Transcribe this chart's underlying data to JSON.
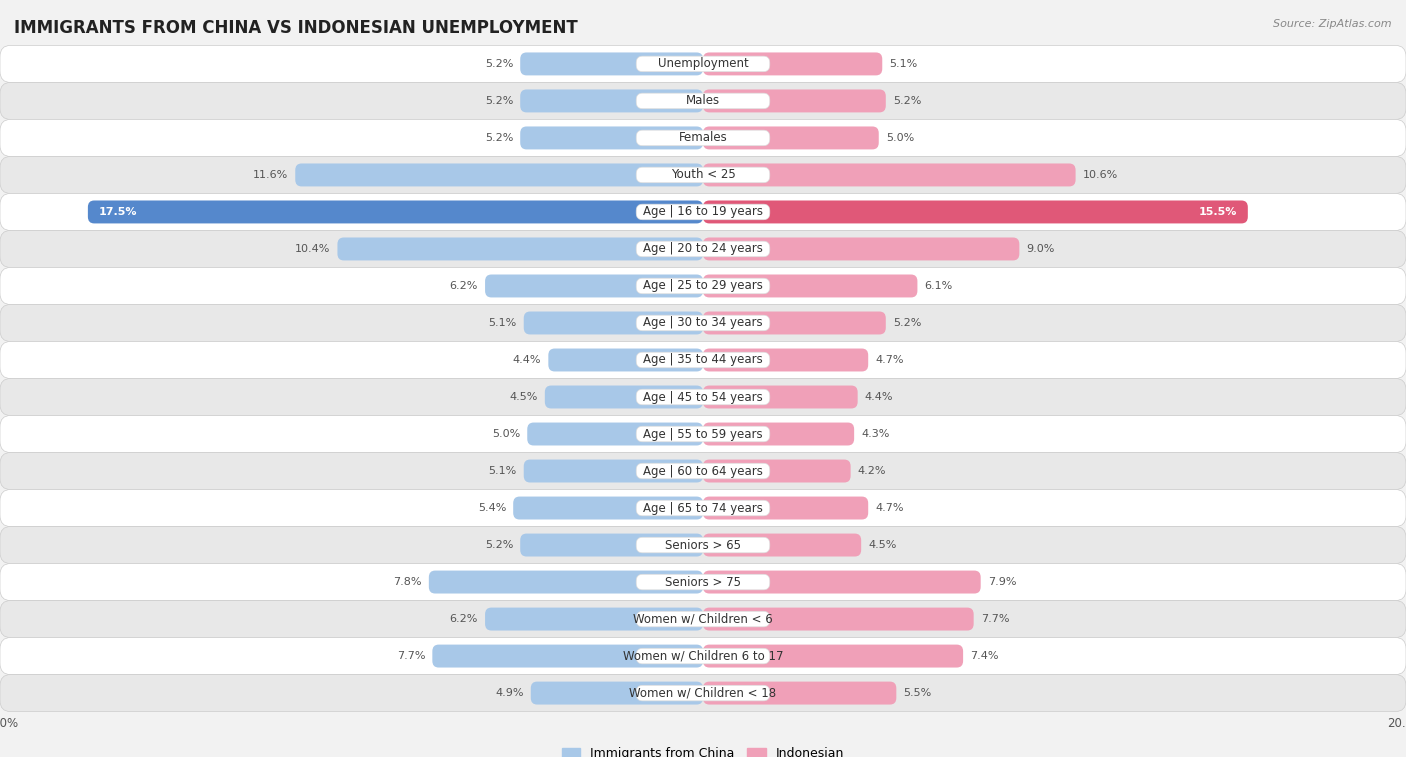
{
  "title": "IMMIGRANTS FROM CHINA VS INDONESIAN UNEMPLOYMENT",
  "source": "Source: ZipAtlas.com",
  "categories": [
    "Unemployment",
    "Males",
    "Females",
    "Youth < 25",
    "Age | 16 to 19 years",
    "Age | 20 to 24 years",
    "Age | 25 to 29 years",
    "Age | 30 to 34 years",
    "Age | 35 to 44 years",
    "Age | 45 to 54 years",
    "Age | 55 to 59 years",
    "Age | 60 to 64 years",
    "Age | 65 to 74 years",
    "Seniors > 65",
    "Seniors > 75",
    "Women w/ Children < 6",
    "Women w/ Children 6 to 17",
    "Women w/ Children < 18"
  ],
  "left_values": [
    5.2,
    5.2,
    5.2,
    11.6,
    17.5,
    10.4,
    6.2,
    5.1,
    4.4,
    4.5,
    5.0,
    5.1,
    5.4,
    5.2,
    7.8,
    6.2,
    7.7,
    4.9
  ],
  "right_values": [
    5.1,
    5.2,
    5.0,
    10.6,
    15.5,
    9.0,
    6.1,
    5.2,
    4.7,
    4.4,
    4.3,
    4.2,
    4.7,
    4.5,
    7.9,
    7.7,
    7.4,
    5.5
  ],
  "left_color": "#a8c8e8",
  "right_color": "#f0a0b8",
  "highlight_left_color": "#5588cc",
  "highlight_right_color": "#e05878",
  "highlight_rows": [
    4
  ],
  "background_color": "#f2f2f2",
  "row_white_color": "#ffffff",
  "row_gray_color": "#e8e8e8",
  "max_value": 20.0,
  "legend_left": "Immigrants from China",
  "legend_right": "Indonesian",
  "title_fontsize": 12,
  "label_fontsize": 8.5,
  "value_fontsize": 8,
  "bar_height": 0.62
}
